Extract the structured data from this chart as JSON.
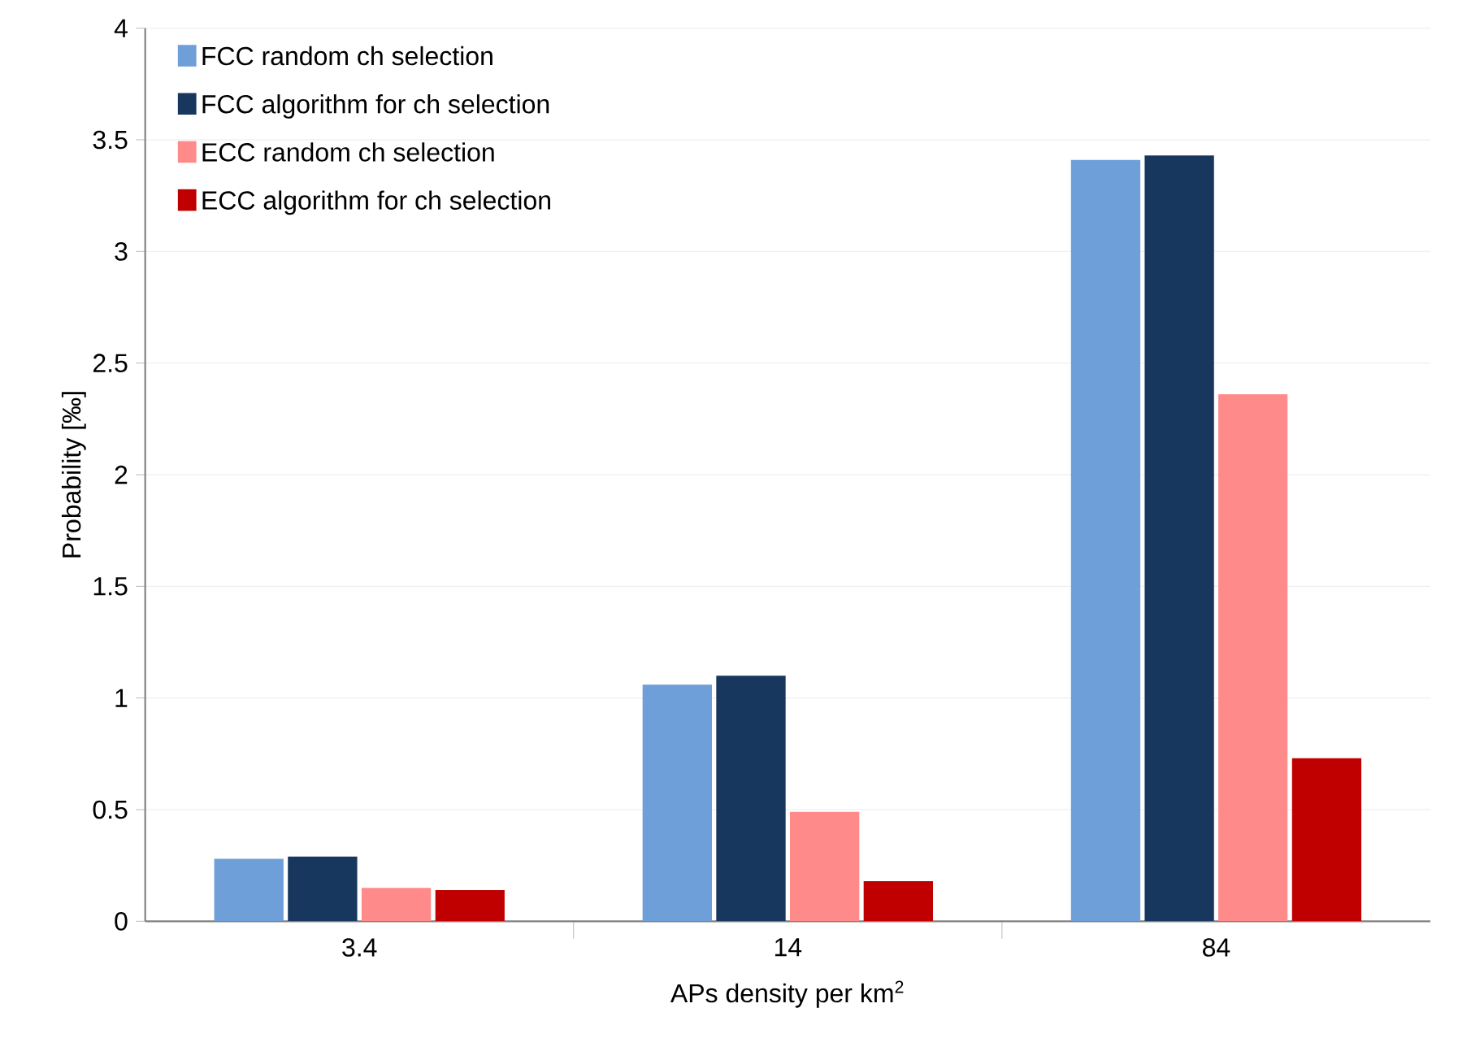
{
  "chart_data": {
    "type": "bar",
    "xlabel": "APs density per km$^{2}$",
    "ylabel": "Probability [‰]",
    "categories": [
      "3.4",
      "14",
      "84"
    ],
    "series": [
      {
        "name": "FCC random ch selection",
        "color": "#6f9fd8",
        "values": [
          0.28,
          1.06,
          3.41
        ]
      },
      {
        "name": "FCC algorithm for ch selection",
        "color": "#17375e",
        "values": [
          0.29,
          1.1,
          3.43
        ]
      },
      {
        "name": "ECC random ch selection",
        "color": "#ff8a8a",
        "values": [
          0.15,
          0.49,
          2.36
        ]
      },
      {
        "name": "ECC algorithm for ch selection",
        "color": "#c00000",
        "values": [
          0.14,
          0.18,
          0.73
        ]
      }
    ],
    "ylim": [
      0,
      4
    ],
    "yticks": [
      0,
      0.5,
      1,
      1.5,
      2,
      2.5,
      3,
      3.5,
      4
    ],
    "grid": "y",
    "legend": "top left"
  }
}
